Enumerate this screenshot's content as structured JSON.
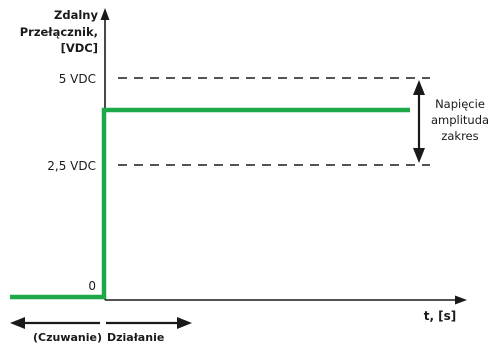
{
  "y_axis": {
    "title_lines": [
      "Zdalny",
      "Przełącznik,",
      "[VDC]"
    ],
    "origin_label": "0"
  },
  "x_axis": {
    "title": "t, [s]"
  },
  "levels": {
    "top_label": "5 VDC",
    "mid_label": "2,5 VDC"
  },
  "annotation": {
    "lines": [
      "Napięcie",
      "amplituda",
      "zakres"
    ]
  },
  "states": {
    "standby": "(Czuwanie)",
    "operation": "Działanie"
  },
  "colors": {
    "signal": "#1fa84a",
    "axis": "#1a1a1a",
    "dash": "#1a1a1a"
  }
}
